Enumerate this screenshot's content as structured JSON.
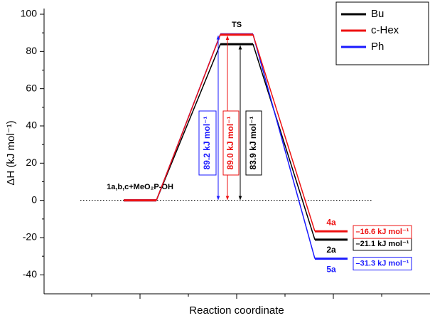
{
  "chart_data": {
    "type": "energy-profile",
    "ylabel": "ΔH (kJ mol⁻¹)",
    "xlabel": "Reaction coordinate",
    "categories": [
      null,
      null,
      null
    ],
    "stage_labels": [
      "1a,b,c+MeO₂P-OH",
      "TS"
    ],
    "ylim": [
      -50,
      100
    ],
    "yticks": [
      -40,
      -20,
      0,
      20,
      40,
      60,
      80,
      100
    ],
    "legend": "top-right",
    "series": [
      {
        "name": "Bu",
        "color": "#000000",
        "values": [
          0,
          83.9,
          -21.1
        ],
        "value_labels": [
          null,
          "83.9 kJ mol⁻¹",
          "–21.1 kJ mol⁻¹"
        ],
        "product_label": "2a"
      },
      {
        "name": "c-Hex",
        "color": "#ee1111",
        "values": [
          0,
          89.0,
          -16.6
        ],
        "value_labels": [
          null,
          "89.0 kJ mol⁻¹",
          "–16.6 kJ mol⁻¹"
        ],
        "product_label": "4a"
      },
      {
        "name": "Ph",
        "color": "#1a1aff",
        "values": [
          0,
          89.2,
          -31.3
        ],
        "value_labels": [
          null,
          "89.2 kJ mol⁻¹",
          "–31.3 kJ mol⁻¹"
        ],
        "product_label": "5a"
      }
    ]
  }
}
